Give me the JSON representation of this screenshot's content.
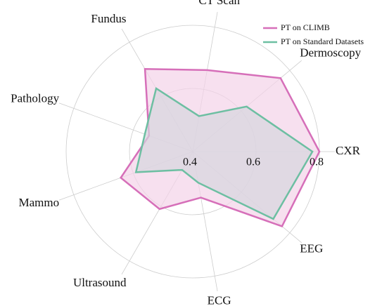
{
  "chart_data": {
    "type": "radar",
    "categories": [
      "CXR",
      "Dermoscopy",
      "CT Scan",
      "Fundus",
      "Pathology",
      "Mammo",
      "Ultrasound",
      "ECG",
      "EEG"
    ],
    "series": [
      {
        "name": "PT on CLIMB",
        "color": "#d66fb9",
        "fill": "#f3d3e8",
        "values": [
          0.8,
          0.762,
          0.662,
          0.702,
          0.547,
          0.642,
          0.61,
          0.548,
          0.768
        ]
      },
      {
        "name": "PT on Standard Datasets",
        "color": "#6dbfa2",
        "fill": "#d6d6de",
        "values": [
          0.778,
          0.622,
          0.514,
          0.631,
          0.561,
          0.591,
          0.467,
          0.5,
          0.732
        ]
      }
    ],
    "rlim": [
      0.4,
      0.8
    ],
    "rticks": [
      0.4,
      0.6,
      0.8
    ],
    "grid": true,
    "legend": "upper right"
  }
}
